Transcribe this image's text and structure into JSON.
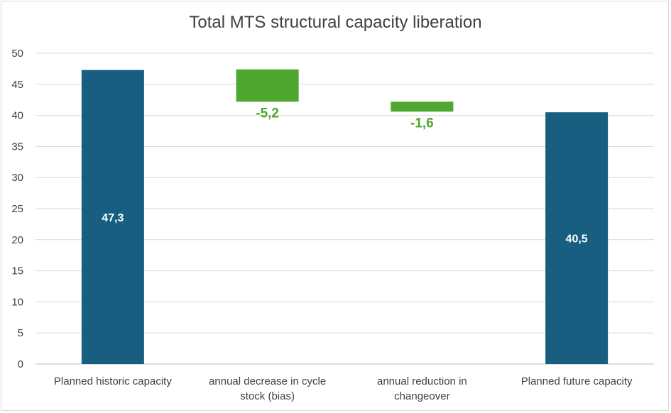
{
  "chart_data": {
    "type": "bar",
    "subtype": "waterfall",
    "title": "Total MTS structural capacity liberation",
    "xlabel": "",
    "ylabel": "",
    "ylim": [
      0,
      50
    ],
    "yticks": [
      0,
      5,
      10,
      15,
      20,
      25,
      30,
      35,
      40,
      45,
      50
    ],
    "grid": true,
    "categories": [
      [
        "Planned historic capacity"
      ],
      [
        "annual decrease in cycle",
        "stock (bias)"
      ],
      [
        "annual reduction in",
        "changeover"
      ],
      [
        "Planned future capacity"
      ]
    ],
    "bars": [
      {
        "kind": "total",
        "start": 0,
        "end": 47.3,
        "label": "47,3",
        "color": "#175e80",
        "label_color": "#ffffff",
        "label_pos": "inside"
      },
      {
        "kind": "decrease",
        "start": 47.4,
        "end": 42.2,
        "label": "-5,2",
        "color": "#4ea72e",
        "label_color": "#4ea72e",
        "label_pos": "below"
      },
      {
        "kind": "decrease",
        "start": 42.2,
        "end": 40.6,
        "label": "-1,6",
        "color": "#4ea72e",
        "label_color": "#4ea72e",
        "label_pos": "below"
      },
      {
        "kind": "total",
        "start": 0,
        "end": 40.5,
        "label": "40,5",
        "color": "#175e80",
        "label_color": "#ffffff",
        "label_pos": "inside"
      }
    ],
    "colors": {
      "grid": "#d9d9d9",
      "axis": "#bfbfbf"
    }
  }
}
